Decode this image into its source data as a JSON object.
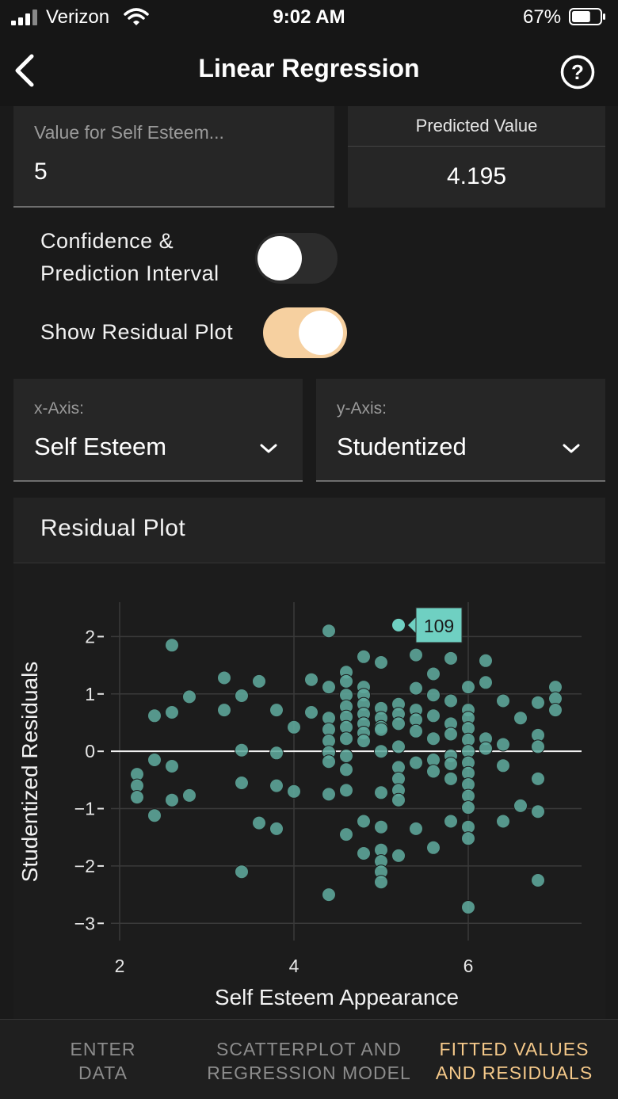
{
  "status_bar": {
    "carrier": "Verizon",
    "time": "9:02 AM",
    "battery_percent": "67%",
    "battery_level": 0.67,
    "icons": [
      "signal-bars-icon",
      "wifi-icon",
      "battery-icon"
    ]
  },
  "nav": {
    "title": "Linear Regression",
    "back_icon": "chevron-left-icon",
    "help_icon": "question-circle-icon"
  },
  "input": {
    "label": "Value for Self Esteem...",
    "value": "5"
  },
  "prediction": {
    "label": "Predicted Value",
    "value": "4.195"
  },
  "toggles": {
    "interval_label_line1": "Confidence &",
    "interval_label_line2": "Prediction Interval",
    "interval_on": false,
    "residual_label": "Show Residual Plot",
    "residual_on": true
  },
  "selects": {
    "x_label": "x-Axis:",
    "x_value": "Self Esteem",
    "y_label": "y-Axis:",
    "y_value": "Studentized"
  },
  "plot": {
    "title": "Residual Plot",
    "tooltip": "109"
  },
  "chart_data": {
    "type": "scatter",
    "xlabel": "Self Esteem Appearance",
    "ylabel": "Studentized Residuals",
    "xlim": [
      1.9,
      7.3
    ],
    "ylim": [
      -3.3,
      2.6
    ],
    "xticks": [
      2,
      4,
      6
    ],
    "yticks": [
      -3,
      -2,
      -1,
      0,
      1,
      2
    ],
    "ytick_labels": [
      "−3",
      "−2",
      "−1",
      "0",
      "1",
      "2"
    ],
    "grid": true,
    "zero_line": true,
    "highlight": {
      "label": "109",
      "x": 5.2,
      "y": 2.2
    },
    "points": [
      [
        2.2,
        -0.4
      ],
      [
        2.2,
        -0.6
      ],
      [
        2.2,
        -0.8
      ],
      [
        2.4,
        0.62
      ],
      [
        2.4,
        -0.15
      ],
      [
        2.4,
        -1.12
      ],
      [
        2.6,
        1.85
      ],
      [
        2.6,
        0.68
      ],
      [
        2.6,
        -0.26
      ],
      [
        2.6,
        -0.85
      ],
      [
        2.8,
        0.95
      ],
      [
        2.8,
        -0.77
      ],
      [
        3.2,
        1.28
      ],
      [
        3.2,
        0.72
      ],
      [
        3.4,
        0.97
      ],
      [
        3.4,
        0.02
      ],
      [
        3.4,
        -0.55
      ],
      [
        3.4,
        -2.1
      ],
      [
        3.6,
        1.22
      ],
      [
        3.6,
        -1.25
      ],
      [
        3.8,
        0.72
      ],
      [
        3.8,
        -0.03
      ],
      [
        3.8,
        -0.6
      ],
      [
        3.8,
        -1.35
      ],
      [
        4.0,
        0.42
      ],
      [
        4.0,
        -0.7
      ],
      [
        4.2,
        1.25
      ],
      [
        4.2,
        0.68
      ],
      [
        4.4,
        2.1
      ],
      [
        4.4,
        1.12
      ],
      [
        4.4,
        0.58
      ],
      [
        4.4,
        0.38
      ],
      [
        4.4,
        0.18
      ],
      [
        4.4,
        -0.02
      ],
      [
        4.4,
        -0.18
      ],
      [
        4.4,
        -0.75
      ],
      [
        4.4,
        -2.5
      ],
      [
        4.6,
        1.38
      ],
      [
        4.6,
        1.22
      ],
      [
        4.6,
        0.98
      ],
      [
        4.6,
        0.78
      ],
      [
        4.6,
        0.6
      ],
      [
        4.6,
        0.42
      ],
      [
        4.6,
        0.22
      ],
      [
        4.6,
        -0.08
      ],
      [
        4.6,
        -0.32
      ],
      [
        4.6,
        -0.68
      ],
      [
        4.6,
        -1.45
      ],
      [
        4.8,
        1.65
      ],
      [
        4.8,
        1.12
      ],
      [
        4.8,
        0.98
      ],
      [
        4.8,
        0.82
      ],
      [
        4.8,
        0.65
      ],
      [
        4.8,
        0.48
      ],
      [
        4.8,
        0.32
      ],
      [
        4.8,
        0.18
      ],
      [
        4.8,
        -1.22
      ],
      [
        4.8,
        -1.78
      ],
      [
        5.0,
        1.55
      ],
      [
        5.0,
        0.75
      ],
      [
        5.0,
        0.58
      ],
      [
        5.0,
        0.42
      ],
      [
        5.0,
        0.38
      ],
      [
        5.0,
        0.0
      ],
      [
        5.0,
        -0.72
      ],
      [
        5.0,
        -1.32
      ],
      [
        5.0,
        -1.72
      ],
      [
        5.0,
        -1.92
      ],
      [
        5.0,
        -2.1
      ],
      [
        5.0,
        -2.28
      ],
      [
        5.2,
        2.2
      ],
      [
        5.2,
        0.82
      ],
      [
        5.2,
        0.65
      ],
      [
        5.2,
        0.48
      ],
      [
        5.2,
        0.08
      ],
      [
        5.2,
        -0.28
      ],
      [
        5.2,
        -0.48
      ],
      [
        5.2,
        -0.68
      ],
      [
        5.2,
        -0.85
      ],
      [
        5.2,
        -1.82
      ],
      [
        5.4,
        1.68
      ],
      [
        5.4,
        1.1
      ],
      [
        5.4,
        0.72
      ],
      [
        5.4,
        0.55
      ],
      [
        5.4,
        0.35
      ],
      [
        5.4,
        -0.2
      ],
      [
        5.4,
        -1.35
      ],
      [
        5.6,
        1.35
      ],
      [
        5.6,
        0.98
      ],
      [
        5.6,
        0.62
      ],
      [
        5.6,
        0.22
      ],
      [
        5.6,
        -0.15
      ],
      [
        5.6,
        -0.35
      ],
      [
        5.6,
        -1.68
      ],
      [
        5.8,
        1.62
      ],
      [
        5.8,
        0.88
      ],
      [
        5.8,
        0.48
      ],
      [
        5.8,
        0.3
      ],
      [
        5.8,
        -0.08
      ],
      [
        5.8,
        -0.22
      ],
      [
        5.8,
        -0.48
      ],
      [
        5.8,
        -1.22
      ],
      [
        6.0,
        1.12
      ],
      [
        6.0,
        0.72
      ],
      [
        6.0,
        0.58
      ],
      [
        6.0,
        0.4
      ],
      [
        6.0,
        0.2
      ],
      [
        6.0,
        0.0
      ],
      [
        6.0,
        -0.2
      ],
      [
        6.0,
        -0.38
      ],
      [
        6.0,
        -0.58
      ],
      [
        6.0,
        -0.78
      ],
      [
        6.0,
        -0.98
      ],
      [
        6.0,
        -1.32
      ],
      [
        6.0,
        -1.52
      ],
      [
        6.0,
        -2.72
      ],
      [
        6.2,
        1.58
      ],
      [
        6.2,
        1.2
      ],
      [
        6.2,
        0.22
      ],
      [
        6.2,
        0.05
      ],
      [
        6.4,
        0.88
      ],
      [
        6.4,
        0.12
      ],
      [
        6.4,
        -0.25
      ],
      [
        6.4,
        -1.22
      ],
      [
        6.6,
        0.58
      ],
      [
        6.6,
        -0.95
      ],
      [
        6.8,
        0.85
      ],
      [
        6.8,
        0.28
      ],
      [
        6.8,
        0.08
      ],
      [
        6.8,
        -0.48
      ],
      [
        6.8,
        -1.05
      ],
      [
        6.8,
        -2.25
      ],
      [
        7.0,
        1.12
      ],
      [
        7.0,
        0.92
      ],
      [
        7.0,
        0.72
      ]
    ]
  },
  "tabs": [
    {
      "line1": "ENTER",
      "line2": "DATA",
      "active": false
    },
    {
      "line1": "SCATTERPLOT AND",
      "line2": "REGRESSION MODEL",
      "active": false
    },
    {
      "line1": "FITTED VALUES",
      "line2": "AND RESIDUALS",
      "active": true
    }
  ],
  "colors": {
    "accent": "#f5c98a",
    "point": "#5fa89c",
    "point_highlight": "#6fd0c2",
    "toggle_on": "#f6d0a0",
    "toggle_off": "#2c2c2c"
  }
}
